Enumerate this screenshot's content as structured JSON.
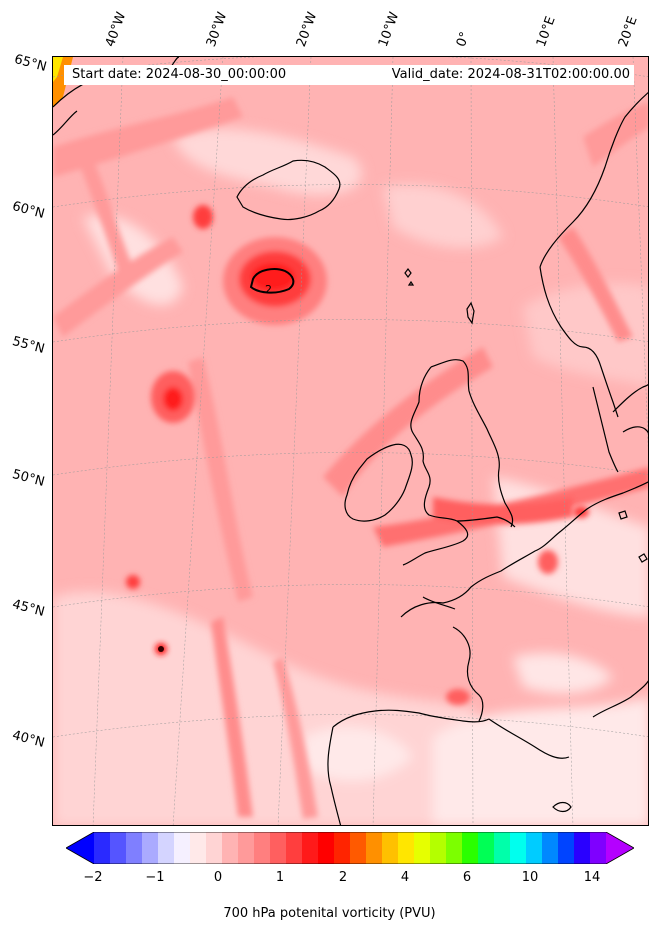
{
  "map": {
    "start_label": "Start date: 2024-08-30_00:00:00",
    "valid_label": "Valid_date: 2024-08-31T02:00:00.00",
    "lon_labels": [
      "40°W",
      "30°W",
      "20°W",
      "10°W",
      "0°",
      "10°E",
      "20°E"
    ],
    "lat_labels": [
      "65°N",
      "60°N",
      "55°N",
      "50°N",
      "45°N",
      "40°N"
    ],
    "contour_label": "2"
  },
  "colorbar": {
    "ticks": [
      "−2",
      "−1",
      "0",
      "1",
      "2",
      "4",
      "6",
      "10",
      "14"
    ],
    "label": "700 hPa potenital vorticity (PVU)",
    "colors": [
      "#0000ff",
      "#2a2aff",
      "#5555ff",
      "#7f7fff",
      "#aaaaff",
      "#d4d4ff",
      "#f5f0ff",
      "#ffe9e9",
      "#ffd4d4",
      "#ffb3b3",
      "#ff9a9a",
      "#ff7f7f",
      "#ff5f5f",
      "#ff3e3e",
      "#ff1a1a",
      "#ff0000",
      "#ff2400",
      "#ff5a00",
      "#ff9000",
      "#ffc000",
      "#ffe600",
      "#e6ff00",
      "#b4ff00",
      "#7cff00",
      "#2aff00",
      "#00ff55",
      "#00ffaa",
      "#00ffee",
      "#00ccff",
      "#0088ff",
      "#0044ff",
      "#2a00ff",
      "#7f00ff",
      "#b400ff"
    ]
  }
}
